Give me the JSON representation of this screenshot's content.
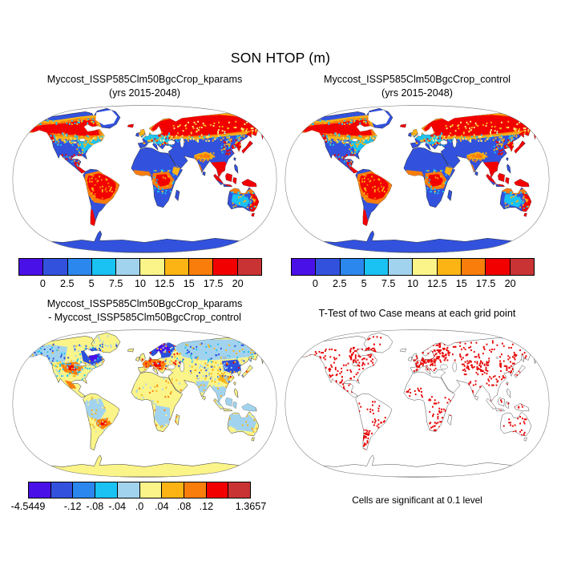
{
  "page": {
    "main_title": "SON HTOP (m)"
  },
  "panels": [
    {
      "id": "top_left",
      "title_line1": "Myccost_ISSP585Clm50BgcCrop_kparams",
      "title_line2": "(yrs 2015-2048)"
    },
    {
      "id": "top_right",
      "title_line1": "Myccost_ISSP585Clm50BgcCrop_control",
      "title_line2": "(yrs 2015-2048)"
    },
    {
      "id": "bottom_left",
      "title_line1": "Myccost_ISSP585Clm50BgcCrop_kparams",
      "title_line2": "- Myccost_ISSP585Clm50BgcCrop_control"
    },
    {
      "id": "bottom_right",
      "title_line1": "T-Test of two Case means at each grid point",
      "caption": "Cells are significant at 0.1 level"
    }
  ],
  "chart_data": [
    {
      "type": "heatmap",
      "projection": "robinson world map",
      "title": "Myccost_ISSP585Clm50BgcCrop_kparams (yrs 2015-2048)",
      "variable": "SON HTOP",
      "units": "m",
      "levels": [
        0,
        2.5,
        5,
        7.5,
        10,
        12.5,
        15,
        17.5,
        20
      ],
      "colorbar": {
        "colors": [
          "#4a10e8",
          "#3252dd",
          "#2b87ee",
          "#19c2f2",
          "#a2d3ee",
          "#fbf489",
          "#fcb414",
          "#f97d0b",
          "#f20000",
          "#c93333"
        ],
        "tick_labels": [
          "0",
          "2.5",
          "5",
          "7.5",
          "10",
          "12.5",
          "15",
          "17.5",
          "20"
        ],
        "tick_positions": [
          0.1,
          0.2,
          0.3,
          0.4,
          0.5,
          0.6,
          0.7,
          0.8,
          0.9
        ]
      },
      "pattern_summary": "Most land in the lowest classes (blue); canopy top heights above 20 m (dark red) over the boreal belt of Canada, Scandinavia and Siberia, the Amazon, the Congo basin, Southeast Asia and Indonesia, Japan, the east Australian coast, New Zealand and southern Chile; Greenland interior blank; Antarctica in the lowest class; oceans white."
    },
    {
      "type": "heatmap",
      "projection": "robinson world map",
      "title": "Myccost_ISSP585Clm50BgcCrop_control (yrs 2015-2048)",
      "variable": "SON HTOP",
      "units": "m",
      "levels": [
        0,
        2.5,
        5,
        7.5,
        10,
        12.5,
        15,
        17.5,
        20
      ],
      "colorbar": {
        "colors": [
          "#4a10e8",
          "#3252dd",
          "#2b87ee",
          "#19c2f2",
          "#a2d3ee",
          "#fbf489",
          "#fcb414",
          "#f97d0b",
          "#f20000",
          "#c93333"
        ],
        "tick_labels": [
          "0",
          "2.5",
          "5",
          "7.5",
          "10",
          "12.5",
          "15",
          "17.5",
          "20"
        ],
        "tick_positions": [
          0.1,
          0.2,
          0.3,
          0.4,
          0.5,
          0.6,
          0.7,
          0.8,
          0.9
        ]
      },
      "pattern_summary": "Nearly identical spatial pattern to the kparams case."
    },
    {
      "type": "heatmap",
      "projection": "robinson world map",
      "title": "Myccost_ISSP585Clm50BgcCrop_kparams - Myccost_ISSP585Clm50BgcCrop_control",
      "variable": "SON HTOP difference",
      "units": "m",
      "range": [
        -4.5449,
        1.3657
      ],
      "colorbar": {
        "colors": [
          "#4a10e8",
          "#3252dd",
          "#2b87ee",
          "#19c2f2",
          "#a2d3ee",
          "#fbf489",
          "#fcb414",
          "#f97d0b",
          "#f20000",
          "#c93333"
        ],
        "tick_labels": [
          "-4.5449",
          "-.12",
          "-.08",
          "-.04",
          ".0",
          ".04",
          ".08",
          ".12",
          "1.3657"
        ],
        "tick_positions": [
          0.0,
          0.2,
          0.3,
          0.4,
          0.5,
          0.6,
          0.7,
          0.8,
          1.0
        ]
      },
      "pattern_summary": "Differences mostly near zero (pale yellow) with light-blue mottling; strong negative (dark blue) clusters over Scandinavia/Baltic, eastern Canada and northeast China; positive (orange/red) patches over western-central Europe, the central US and south-central South America."
    },
    {
      "type": "significance-map",
      "projection": "robinson world map",
      "title": "T-Test of two Case means at each grid point",
      "caption": "Cells are significant at 0.1 level",
      "marker_color": "#e80000",
      "pattern_summary": "Red cells mark grid points where the two case means differ significantly at the 0.1 level; densest over Europe and Scandinavia, eastern Canada, central Asia, northeast China and Patagonia, with scattered cells elsewhere on land."
    }
  ]
}
